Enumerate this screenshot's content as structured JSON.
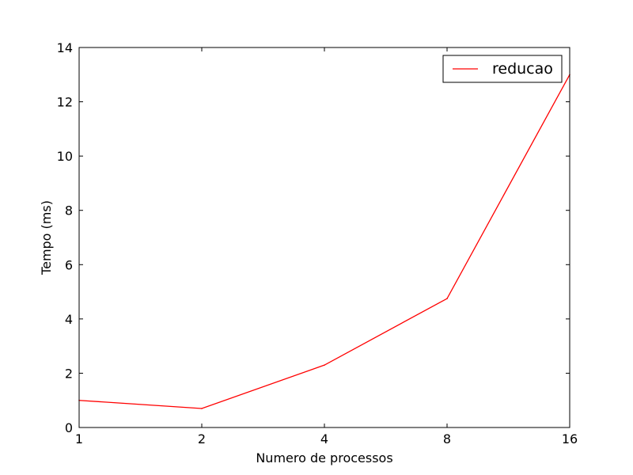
{
  "chart_data": {
    "type": "line",
    "title": "",
    "xlabel": "Numero de processos",
    "ylabel": "Tempo (ms)",
    "x_categories": [
      "1",
      "2",
      "4",
      "8",
      "16"
    ],
    "ylim": [
      0,
      14
    ],
    "y_ticks": [
      0,
      2,
      4,
      6,
      8,
      10,
      12,
      14
    ],
    "grid": false,
    "legend_position": "top-right",
    "series": [
      {
        "name": "reducao",
        "color": "#ff0000",
        "values": [
          1.0,
          0.7,
          2.3,
          4.75,
          13.0
        ]
      }
    ]
  }
}
